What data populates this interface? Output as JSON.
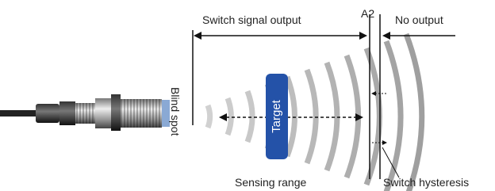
{
  "labels": {
    "switch_signal_output": "Switch signal output",
    "a2": "A2",
    "no_output": "No output",
    "blind_spot": "Blind spot",
    "target": "Target",
    "sensing_range": "Sensing range",
    "switch_hysteresis": "Switch hysteresis"
  }
}
